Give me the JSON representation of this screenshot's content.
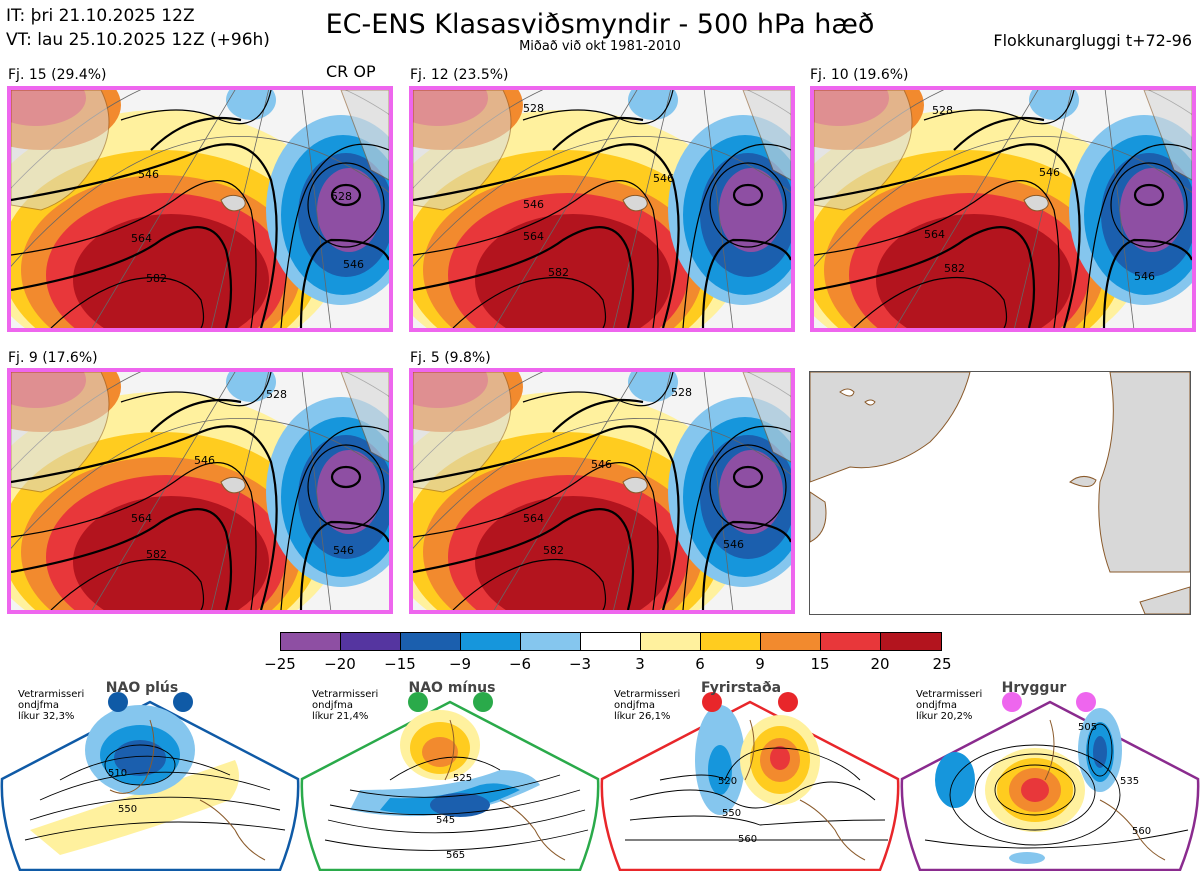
{
  "header": {
    "it_line": "IT: þri 21.10.2025 12Z",
    "vt_line": "VT: lau 25.10.2025 12Z  (+96h)",
    "title": "EC-ENS Klasasviðsmyndir - 500 hPa hæð",
    "subtitle": "Miðað við okt 1981-2010",
    "window": "Flokkunargluggi t+72-96"
  },
  "panels": [
    {
      "label": "Fj. 15 (29.4%)",
      "tag": "CR OP",
      "contours": [
        "528",
        "546",
        "564",
        "582"
      ],
      "tr": "546"
    },
    {
      "label": "Fj. 12 (23.5%)",
      "tag": "",
      "contours": [
        "528",
        "546",
        "564",
        "582"
      ],
      "tr": "546"
    },
    {
      "label": "Fj. 10 (19.6%)",
      "tag": "",
      "contours": [
        "528",
        "546",
        "564",
        "582"
      ],
      "tr": "546"
    },
    {
      "label": "Fj. 9 (17.6%)",
      "tag": "",
      "contours": [
        "528",
        "546",
        "564",
        "582"
      ],
      "tr": "546"
    },
    {
      "label": "Fj. 5 (9.8%)",
      "tag": "",
      "contours": [
        "528",
        "546",
        "564",
        "582"
      ],
      "tr": "546"
    }
  ],
  "colorbar": {
    "ticks": [
      "−25",
      "−20",
      "−15",
      "−9",
      "−6",
      "−3",
      "3",
      "6",
      "9",
      "15",
      "20",
      "25"
    ],
    "colors": [
      "#8e4fa3",
      "#5535a0",
      "#1b5fae",
      "#1696dc",
      "#85c6ee",
      "#ffffff",
      "#fff19e",
      "#ffcc1f",
      "#f28a2e",
      "#e8373a",
      "#b3141e"
    ]
  },
  "regimes": [
    {
      "name": "NAO plús",
      "info1": "Vetrarmisseri",
      "info2": "ondjfma",
      "info3": "líkur 32,3%",
      "color": "#0f5aa6",
      "c1": "510",
      "c2": "550"
    },
    {
      "name": "NAO mínus",
      "info1": "Vetrarmisseri",
      "info2": "ondjfma",
      "info3": "líkur 21,4%",
      "color": "#2aaa4a",
      "c1": "525",
      "c2": "545",
      "c3": "565"
    },
    {
      "name": "Fyrirstaða",
      "info1": "Vetrarmisseri",
      "info2": "ondjfma",
      "info3": "líkur 26,1%",
      "color": "#e8262a",
      "c1": "520",
      "c2": "550",
      "c3": "560"
    },
    {
      "name": "Hryggur",
      "info1": "Vetrarmisseri",
      "info2": "ondjfma",
      "info3": "líkur 20,2%",
      "color": "#8a2b8e",
      "c1": "505",
      "c2": "535",
      "c3": "560"
    }
  ]
}
